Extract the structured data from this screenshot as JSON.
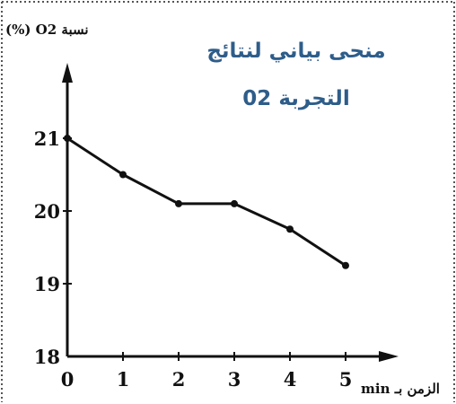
{
  "chart_data": {
    "type": "line",
    "title_line1": "منحى بياني لنتائج",
    "title_line2": "التجربة 02",
    "ylabel": "نسبة O2 (%)",
    "xlabel": "الزمن بـ min",
    "x": [
      0,
      1,
      2,
      3,
      4,
      5
    ],
    "series": [
      {
        "values": [
          21.0,
          20.5,
          20.1,
          20.1,
          19.75,
          19.25
        ]
      }
    ],
    "xticks": [
      "0",
      "1",
      "2",
      "3",
      "4",
      "5"
    ],
    "yticks": [
      "18",
      "19",
      "20",
      "21"
    ],
    "xlim": [
      0,
      5
    ],
    "ylim": [
      18,
      21
    ],
    "grid": false,
    "colors": {
      "line": "#111111",
      "title": "#2e5d8a",
      "frame_dots": "#555555"
    }
  }
}
